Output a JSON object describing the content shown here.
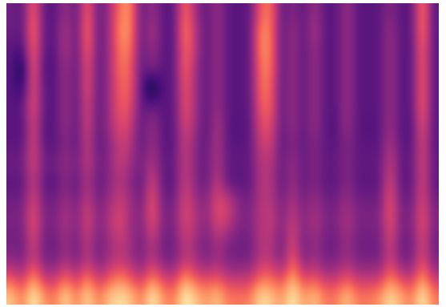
{
  "chart_data": {
    "type": "heatmap",
    "color": "magma",
    "tick_labels": false,
    "cells": [
      [
        0.35,
        0.3,
        0.7,
        0.3,
        0.3,
        0.45,
        0.3,
        0.7,
        0.3,
        0.45,
        0.7,
        0.75,
        0.3,
        0.45,
        0.3,
        0.3,
        0.7,
        0.45,
        0.3,
        0.45,
        0.3,
        0.3,
        0.3,
        0.65,
        0.7,
        0.3,
        0.4,
        0.3,
        0.45,
        0.3,
        0.3,
        0.45,
        0.3,
        0.3,
        0.3,
        0.4,
        0.3,
        0.3,
        0.75,
        0.3
      ],
      [
        0.35,
        0.3,
        0.75,
        0.3,
        0.32,
        0.5,
        0.3,
        0.75,
        0.3,
        0.45,
        0.75,
        0.75,
        0.3,
        0.5,
        0.3,
        0.3,
        0.75,
        0.5,
        0.3,
        0.45,
        0.3,
        0.3,
        0.3,
        0.75,
        0.7,
        0.3,
        0.45,
        0.3,
        0.5,
        0.3,
        0.3,
        0.45,
        0.3,
        0.3,
        0.3,
        0.45,
        0.3,
        0.3,
        0.75,
        0.3
      ],
      [
        0.3,
        0.25,
        0.7,
        0.3,
        0.3,
        0.5,
        0.3,
        0.7,
        0.3,
        0.45,
        0.7,
        0.7,
        0.3,
        0.45,
        0.3,
        0.3,
        0.7,
        0.5,
        0.3,
        0.45,
        0.3,
        0.3,
        0.3,
        0.75,
        0.7,
        0.3,
        0.45,
        0.3,
        0.45,
        0.3,
        0.3,
        0.45,
        0.3,
        0.3,
        0.3,
        0.45,
        0.3,
        0.3,
        0.7,
        0.3
      ],
      [
        0.3,
        0.1,
        0.7,
        0.25,
        0.3,
        0.45,
        0.3,
        0.65,
        0.3,
        0.45,
        0.7,
        0.65,
        0.3,
        0.4,
        0.3,
        0.3,
        0.7,
        0.45,
        0.3,
        0.45,
        0.3,
        0.3,
        0.3,
        0.7,
        0.7,
        0.3,
        0.45,
        0.3,
        0.45,
        0.3,
        0.3,
        0.45,
        0.3,
        0.3,
        0.3,
        0.45,
        0.3,
        0.3,
        0.7,
        0.3
      ],
      [
        0.3,
        0.2,
        0.65,
        0.3,
        0.3,
        0.45,
        0.3,
        0.65,
        0.3,
        0.45,
        0.65,
        0.65,
        0.3,
        0.05,
        0.3,
        0.3,
        0.65,
        0.45,
        0.3,
        0.45,
        0.3,
        0.3,
        0.3,
        0.7,
        0.65,
        0.3,
        0.45,
        0.3,
        0.45,
        0.3,
        0.3,
        0.45,
        0.3,
        0.3,
        0.3,
        0.45,
        0.3,
        0.3,
        0.7,
        0.3
      ],
      [
        0.3,
        0.3,
        0.65,
        0.3,
        0.3,
        0.45,
        0.3,
        0.6,
        0.3,
        0.45,
        0.65,
        0.6,
        0.3,
        0.35,
        0.3,
        0.3,
        0.65,
        0.45,
        0.3,
        0.45,
        0.3,
        0.3,
        0.3,
        0.65,
        0.65,
        0.3,
        0.45,
        0.3,
        0.45,
        0.3,
        0.3,
        0.45,
        0.3,
        0.3,
        0.3,
        0.45,
        0.3,
        0.3,
        0.7,
        0.3
      ],
      [
        0.3,
        0.28,
        0.6,
        0.28,
        0.3,
        0.45,
        0.3,
        0.6,
        0.3,
        0.45,
        0.6,
        0.55,
        0.3,
        0.45,
        0.3,
        0.3,
        0.6,
        0.45,
        0.28,
        0.5,
        0.3,
        0.28,
        0.3,
        0.6,
        0.6,
        0.3,
        0.45,
        0.3,
        0.45,
        0.3,
        0.28,
        0.45,
        0.3,
        0.28,
        0.3,
        0.45,
        0.3,
        0.28,
        0.65,
        0.3
      ],
      [
        0.3,
        0.3,
        0.6,
        0.3,
        0.3,
        0.4,
        0.3,
        0.55,
        0.3,
        0.4,
        0.55,
        0.5,
        0.3,
        0.45,
        0.3,
        0.3,
        0.55,
        0.4,
        0.3,
        0.5,
        0.3,
        0.3,
        0.3,
        0.55,
        0.55,
        0.3,
        0.4,
        0.3,
        0.4,
        0.3,
        0.3,
        0.4,
        0.3,
        0.3,
        0.3,
        0.5,
        0.3,
        0.3,
        0.6,
        0.3
      ],
      [
        0.35,
        0.35,
        0.6,
        0.35,
        0.35,
        0.45,
        0.35,
        0.55,
        0.35,
        0.4,
        0.55,
        0.45,
        0.35,
        0.5,
        0.32,
        0.32,
        0.55,
        0.4,
        0.32,
        0.5,
        0.32,
        0.32,
        0.32,
        0.5,
        0.5,
        0.32,
        0.45,
        0.32,
        0.4,
        0.32,
        0.32,
        0.4,
        0.32,
        0.32,
        0.32,
        0.55,
        0.32,
        0.32,
        0.6,
        0.32
      ],
      [
        0.3,
        0.3,
        0.55,
        0.3,
        0.3,
        0.4,
        0.3,
        0.5,
        0.3,
        0.4,
        0.5,
        0.4,
        0.3,
        0.6,
        0.3,
        0.3,
        0.55,
        0.4,
        0.3,
        0.55,
        0.3,
        0.3,
        0.3,
        0.5,
        0.5,
        0.3,
        0.45,
        0.3,
        0.4,
        0.3,
        0.3,
        0.4,
        0.3,
        0.3,
        0.3,
        0.6,
        0.3,
        0.3,
        0.6,
        0.3
      ],
      [
        0.35,
        0.35,
        0.6,
        0.35,
        0.35,
        0.45,
        0.35,
        0.55,
        0.35,
        0.45,
        0.55,
        0.45,
        0.35,
        0.65,
        0.35,
        0.35,
        0.6,
        0.45,
        0.4,
        0.6,
        0.55,
        0.4,
        0.35,
        0.5,
        0.5,
        0.35,
        0.5,
        0.35,
        0.45,
        0.35,
        0.35,
        0.45,
        0.35,
        0.35,
        0.35,
        0.65,
        0.35,
        0.35,
        0.6,
        0.35
      ],
      [
        0.38,
        0.38,
        0.65,
        0.38,
        0.38,
        0.5,
        0.38,
        0.6,
        0.38,
        0.5,
        0.6,
        0.45,
        0.38,
        0.65,
        0.38,
        0.38,
        0.6,
        0.5,
        0.4,
        0.6,
        0.55,
        0.4,
        0.38,
        0.5,
        0.55,
        0.38,
        0.55,
        0.38,
        0.5,
        0.38,
        0.38,
        0.5,
        0.38,
        0.38,
        0.38,
        0.65,
        0.38,
        0.38,
        0.65,
        0.38
      ],
      [
        0.35,
        0.35,
        0.6,
        0.35,
        0.35,
        0.45,
        0.35,
        0.55,
        0.35,
        0.45,
        0.55,
        0.45,
        0.35,
        0.55,
        0.35,
        0.35,
        0.55,
        0.45,
        0.35,
        0.5,
        0.4,
        0.35,
        0.35,
        0.5,
        0.5,
        0.35,
        0.6,
        0.35,
        0.45,
        0.35,
        0.35,
        0.45,
        0.35,
        0.35,
        0.35,
        0.6,
        0.35,
        0.35,
        0.6,
        0.35
      ],
      [
        0.4,
        0.35,
        0.55,
        0.35,
        0.35,
        0.45,
        0.35,
        0.5,
        0.35,
        0.45,
        0.5,
        0.45,
        0.35,
        0.5,
        0.35,
        0.35,
        0.5,
        0.45,
        0.35,
        0.45,
        0.35,
        0.35,
        0.35,
        0.5,
        0.5,
        0.35,
        0.65,
        0.35,
        0.45,
        0.35,
        0.35,
        0.45,
        0.35,
        0.35,
        0.35,
        0.55,
        0.35,
        0.35,
        0.6,
        0.35
      ],
      [
        0.6,
        0.5,
        0.75,
        0.5,
        0.5,
        0.65,
        0.5,
        0.7,
        0.5,
        0.6,
        0.7,
        0.6,
        0.5,
        0.7,
        0.55,
        0.5,
        0.75,
        0.6,
        0.55,
        0.6,
        0.5,
        0.5,
        0.5,
        0.65,
        0.65,
        0.55,
        0.8,
        0.55,
        0.6,
        0.5,
        0.5,
        0.6,
        0.5,
        0.5,
        0.5,
        0.7,
        0.55,
        0.5,
        0.75,
        0.5
      ],
      [
        0.85,
        0.7,
        0.95,
        0.75,
        0.7,
        0.9,
        0.7,
        0.9,
        0.7,
        0.85,
        0.9,
        0.85,
        0.7,
        0.95,
        0.75,
        0.7,
        0.95,
        0.85,
        0.75,
        0.85,
        0.7,
        0.7,
        0.7,
        0.9,
        0.85,
        0.75,
        0.95,
        0.75,
        0.85,
        0.7,
        0.7,
        0.85,
        0.7,
        0.7,
        0.75,
        0.9,
        0.8,
        0.7,
        0.95,
        0.7
      ]
    ]
  }
}
